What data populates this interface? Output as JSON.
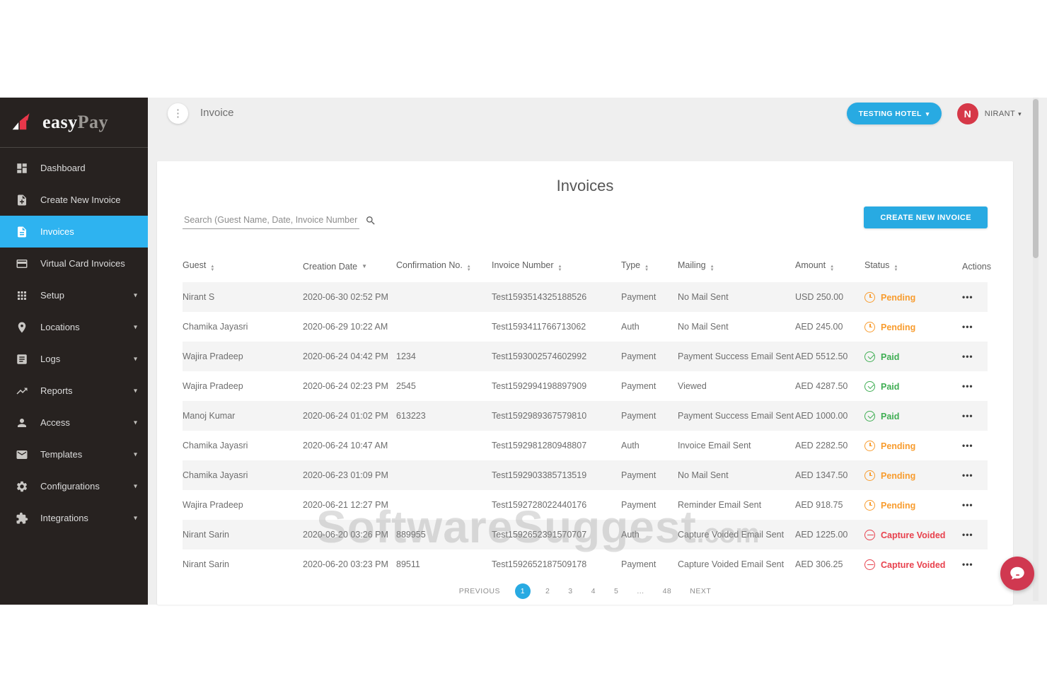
{
  "colors": {
    "accent": "#28aae2",
    "active_item": "#2eb3f0",
    "pending": "#f89c2e",
    "paid": "#3fae53",
    "voided": "#e8414d",
    "avatar": "#d63848",
    "sidebar_bg": "#272220",
    "chat_fab": "#d03850"
  },
  "icons": {
    "kebab": "⋮",
    "caret_down": "▾",
    "sort_asc": "▲",
    "sort_desc": "▼",
    "row_actions": "•••"
  },
  "sidebar": {
    "logo_part1": "easy",
    "logo_part2": "Pay",
    "items": [
      {
        "label": "Dashboard",
        "icon": "dashboard",
        "active": false,
        "expandable": false
      },
      {
        "label": "Create New Invoice",
        "icon": "create-invoice",
        "active": false,
        "expandable": false
      },
      {
        "label": "Invoices",
        "icon": "invoices",
        "active": true,
        "expandable": false
      },
      {
        "label": "Virtual Card Invoices",
        "icon": "virtual-card",
        "active": false,
        "expandable": false
      },
      {
        "label": "Setup",
        "icon": "setup",
        "active": false,
        "expandable": true
      },
      {
        "label": "Locations",
        "icon": "locations",
        "active": false,
        "expandable": true
      },
      {
        "label": "Logs",
        "icon": "logs",
        "active": false,
        "expandable": true
      },
      {
        "label": "Reports",
        "icon": "reports",
        "active": false,
        "expandable": true
      },
      {
        "label": "Access",
        "icon": "access",
        "active": false,
        "expandable": true
      },
      {
        "label": "Templates",
        "icon": "templates",
        "active": false,
        "expandable": true
      },
      {
        "label": "Configurations",
        "icon": "configurations",
        "active": false,
        "expandable": true
      },
      {
        "label": "Integrations",
        "icon": "integrations",
        "active": false,
        "expandable": true
      }
    ]
  },
  "topbar": {
    "title": "Invoice",
    "hotel_button": "TESTING HOTEL",
    "user_initial": "N",
    "user_name": "NIRANT"
  },
  "main": {
    "heading": "Invoices",
    "search_placeholder": "Search (Guest Name, Date, Invoice Number etc.)",
    "create_button": "CREATE NEW INVOICE",
    "table": {
      "columns": [
        {
          "label": "Guest",
          "sort": "both"
        },
        {
          "label": "Creation Date",
          "sort": "desc"
        },
        {
          "label": "Confirmation No.",
          "sort": "both"
        },
        {
          "label": "Invoice Number",
          "sort": "both"
        },
        {
          "label": "Type",
          "sort": "both"
        },
        {
          "label": "Mailing",
          "sort": "both"
        },
        {
          "label": "Amount",
          "sort": "both"
        },
        {
          "label": "Status",
          "sort": "both"
        },
        {
          "label": "Actions",
          "sort": "none"
        }
      ],
      "rows": [
        {
          "guest": "Nirant S",
          "date": "2020-06-30 02:52 PM",
          "confirmation": "",
          "invoice": "Test1593514325188526",
          "type": "Payment",
          "mailing": "No Mail Sent",
          "amount": "USD 250.00",
          "status": "Pending",
          "status_kind": "pending"
        },
        {
          "guest": "Chamika Jayasri",
          "date": "2020-06-29 10:22 AM",
          "confirmation": "",
          "invoice": "Test1593411766713062",
          "type": "Auth",
          "mailing": "No Mail Sent",
          "amount": "AED 245.00",
          "status": "Pending",
          "status_kind": "pending"
        },
        {
          "guest": "Wajira Pradeep",
          "date": "2020-06-24 04:42 PM",
          "confirmation": "1234",
          "invoice": "Test1593002574602992",
          "type": "Payment",
          "mailing": "Payment Success Email Sent",
          "amount": "AED 5512.50",
          "status": "Paid",
          "status_kind": "paid"
        },
        {
          "guest": "Wajira Pradeep",
          "date": "2020-06-24 02:23 PM",
          "confirmation": "2545",
          "invoice": "Test1592994198897909",
          "type": "Payment",
          "mailing": "Viewed",
          "amount": "AED 4287.50",
          "status": "Paid",
          "status_kind": "paid"
        },
        {
          "guest": "Manoj Kumar",
          "date": "2020-06-24 01:02 PM",
          "confirmation": "613223",
          "invoice": "Test1592989367579810",
          "type": "Payment",
          "mailing": "Payment Success Email Sent",
          "amount": "AED 1000.00",
          "status": "Paid",
          "status_kind": "paid"
        },
        {
          "guest": "Chamika Jayasri",
          "date": "2020-06-24 10:47 AM",
          "confirmation": "",
          "invoice": "Test1592981280948807",
          "type": "Auth",
          "mailing": "Invoice Email Sent",
          "amount": "AED 2282.50",
          "status": "Pending",
          "status_kind": "pending"
        },
        {
          "guest": "Chamika Jayasri",
          "date": "2020-06-23 01:09 PM",
          "confirmation": "",
          "invoice": "Test1592903385713519",
          "type": "Payment",
          "mailing": "No Mail Sent",
          "amount": "AED 1347.50",
          "status": "Pending",
          "status_kind": "pending"
        },
        {
          "guest": "Wajira Pradeep",
          "date": "2020-06-21 12:27 PM",
          "confirmation": "",
          "invoice": "Test1592728022440176",
          "type": "Payment",
          "mailing": "Reminder Email Sent",
          "amount": "AED 918.75",
          "status": "Pending",
          "status_kind": "pending"
        },
        {
          "guest": "Nirant Sarin",
          "date": "2020-06-20 03:26 PM",
          "confirmation": "889955",
          "invoice": "Test1592652391570707",
          "type": "Auth",
          "mailing": "Capture Voided Email Sent",
          "amount": "AED 1225.00",
          "status": "Capture Voided",
          "status_kind": "voided"
        },
        {
          "guest": "Nirant Sarin",
          "date": "2020-06-20 03:23 PM",
          "confirmation": "89511",
          "invoice": "Test1592652187509178",
          "type": "Payment",
          "mailing": "Capture Voided Email Sent",
          "amount": "AED 306.25",
          "status": "Capture Voided",
          "status_kind": "voided"
        }
      ]
    },
    "pagination": {
      "previous": "PREVIOUS",
      "pages": [
        "1",
        "2",
        "3",
        "4",
        "5",
        "...",
        "48"
      ],
      "active_page": "1",
      "next": "NEXT"
    }
  },
  "watermark": {
    "main": "SoftwareSuggest",
    "suffix": ".com"
  }
}
